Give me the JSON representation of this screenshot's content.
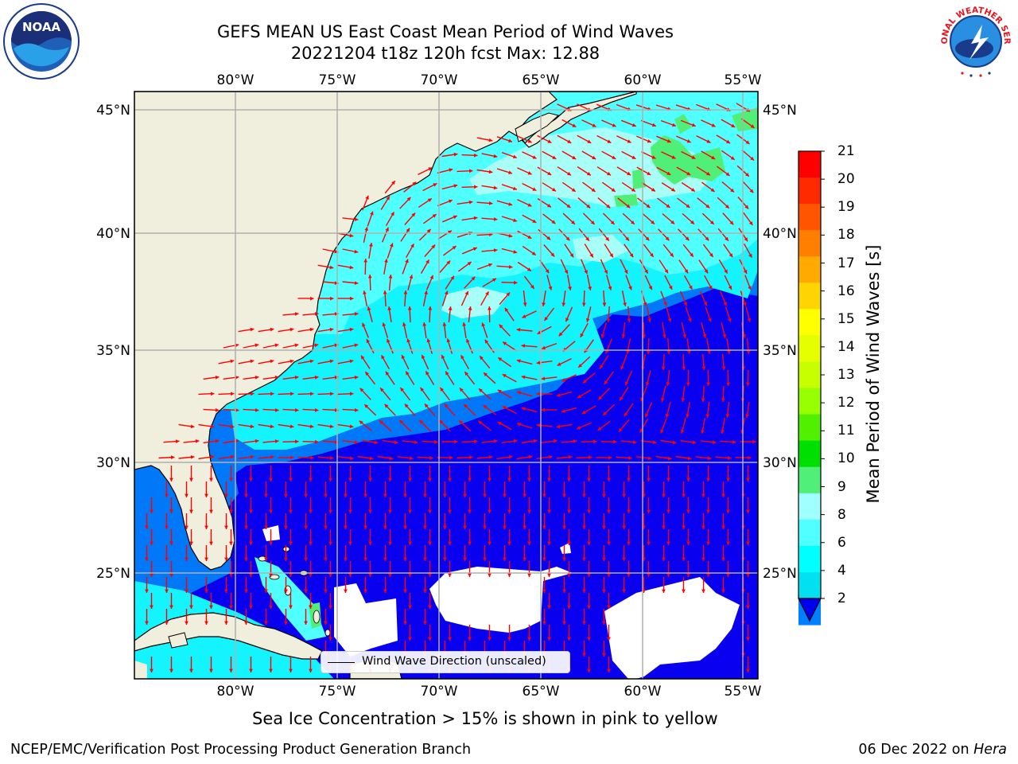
{
  "title_line1": "GEFS MEAN US East Coast Mean Period of Wind Waves",
  "title_line2": "20221204 t18z 120h fcst   Max: 12.88",
  "longitude_ticks": [
    "80°W",
    "75°W",
    "70°W",
    "65°W",
    "60°W",
    "55°W"
  ],
  "latitude_ticks": [
    "45°N",
    "40°N",
    "35°N",
    "30°N",
    "25°N"
  ],
  "legend_label": "Wind Wave Direction (unscaled)",
  "colorbar": {
    "label": "Mean Period of Wind Waves [s]",
    "ticks": [
      "21",
      "20",
      "19",
      "18",
      "17",
      "16",
      "15",
      "14",
      "13",
      "12",
      "11",
      "10",
      "9",
      "8",
      "6",
      "4",
      "2"
    ],
    "colors": [
      "#ff0000",
      "#ff2a00",
      "#ff5500",
      "#ff8000",
      "#ffaa00",
      "#ffd400",
      "#ffff00",
      "#e5ff00",
      "#c8ff00",
      "#96ff00",
      "#50f000",
      "#00e000",
      "#50f078",
      "#a0ffff",
      "#50ffff",
      "#00ffff",
      "#00e0f0",
      "#0080ff",
      "#0000f0"
    ]
  },
  "caption": "Sea Ice Concentration > 15% is shown in pink to yellow",
  "footer_left": "NCEP/EMC/Verification Post Processing Product Generation Branch",
  "footer_right_date": "06 Dec 2022 on ",
  "footer_right_host": "Hera",
  "logos": {
    "left": "NOAA",
    "right": "NATIONAL WEATHER SERVICE"
  },
  "map_colors": {
    "land": "#f0eedc",
    "deep": "#0a00f0",
    "blue2": "#0078f8",
    "cyan": "#14f4ff",
    "cyan_light": "#50ffff",
    "pale": "#a8fff8",
    "green": "#50f078",
    "arrow": "#ff0000"
  }
}
